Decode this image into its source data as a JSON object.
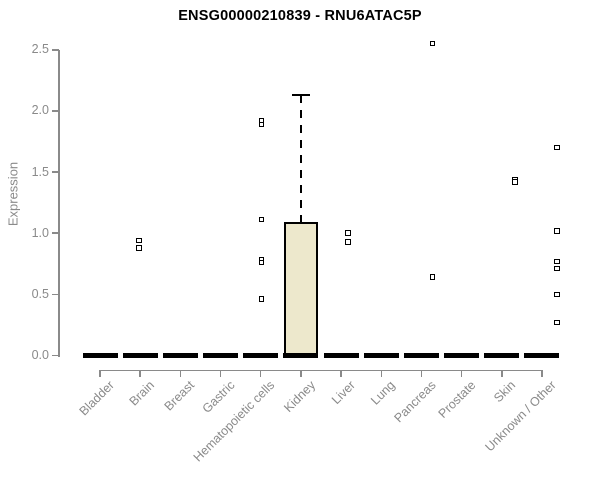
{
  "chart_data": {
    "type": "boxplot",
    "title": "ENSG00000210839 - RNU6ATAC5P",
    "ylabel": "Expression",
    "ylim": [
      0,
      2.5
    ],
    "ytick_labels": [
      "0.0",
      "0.5",
      "1.0",
      "1.5",
      "2.0",
      "2.5"
    ],
    "yticks": [
      0.0,
      0.5,
      1.0,
      1.5,
      2.0,
      2.5
    ],
    "grid": false,
    "legend": "none",
    "categories": [
      "Bladder",
      "Brain",
      "Breast",
      "Gastric",
      "Hematopoietic cells",
      "Kidney",
      "Liver",
      "Lung",
      "Pancreas",
      "Prostate",
      "Skin",
      "Unknown / Other"
    ],
    "boxes": [
      {
        "category": "Bladder",
        "q1": 0,
        "median": 0,
        "q3": 0,
        "whisker_low": 0,
        "whisker_high": 0
      },
      {
        "category": "Brain",
        "q1": 0,
        "median": 0,
        "q3": 0,
        "whisker_low": 0,
        "whisker_high": 0
      },
      {
        "category": "Breast",
        "q1": 0,
        "median": 0,
        "q3": 0,
        "whisker_low": 0,
        "whisker_high": 0
      },
      {
        "category": "Gastric",
        "q1": 0,
        "median": 0,
        "q3": 0,
        "whisker_low": 0,
        "whisker_high": 0
      },
      {
        "category": "Hematopoietic cells",
        "q1": 0,
        "median": 0,
        "q3": 0,
        "whisker_low": 0,
        "whisker_high": 0
      },
      {
        "category": "Kidney",
        "q1": 0,
        "median": 0,
        "q3": 1.09,
        "whisker_low": 0,
        "whisker_high": 2.13
      },
      {
        "category": "Liver",
        "q1": 0,
        "median": 0,
        "q3": 0,
        "whisker_low": 0,
        "whisker_high": 0
      },
      {
        "category": "Lung",
        "q1": 0,
        "median": 0,
        "q3": 0,
        "whisker_low": 0,
        "whisker_high": 0
      },
      {
        "category": "Pancreas",
        "q1": 0,
        "median": 0,
        "q3": 0,
        "whisker_low": 0,
        "whisker_high": 0
      },
      {
        "category": "Prostate",
        "q1": 0,
        "median": 0,
        "q3": 0,
        "whisker_low": 0,
        "whisker_high": 0
      },
      {
        "category": "Skin",
        "q1": 0,
        "median": 0,
        "q3": 0,
        "whisker_low": 0,
        "whisker_high": 0
      },
      {
        "category": "Unknown / Other",
        "q1": 0,
        "median": 0,
        "q3": 0,
        "whisker_low": 0,
        "whisker_high": 0
      }
    ],
    "outliers": [
      {
        "category": "Brain",
        "dx": -1,
        "values": [
          0.94,
          0.88
        ]
      },
      {
        "category": "Hematopoietic cells",
        "dx": 1,
        "values": [
          1.92,
          1.89,
          1.11,
          0.78,
          0.76,
          0.46
        ]
      },
      {
        "category": "Liver",
        "dx": 7,
        "values": [
          1.0,
          0.93
        ]
      },
      {
        "category": "Pancreas",
        "dx": 11,
        "values": [
          2.55,
          0.64
        ]
      },
      {
        "category": "Skin",
        "dx": 13,
        "values": [
          1.44,
          1.42
        ]
      },
      {
        "category": "Unknown / Other",
        "dx": 15,
        "values": [
          1.7,
          1.02,
          0.77,
          0.71,
          0.5,
          0.27
        ]
      }
    ],
    "colors": {
      "box_fill": "#ede8cc",
      "box_border": "#000000",
      "median": "#000000",
      "whisker": "#000000",
      "point_border": "#000000",
      "point_fill": "#ffffff",
      "axis": "#8a8a8a",
      "tick_text": "#8a8a8a",
      "title_text": "#000000"
    }
  }
}
